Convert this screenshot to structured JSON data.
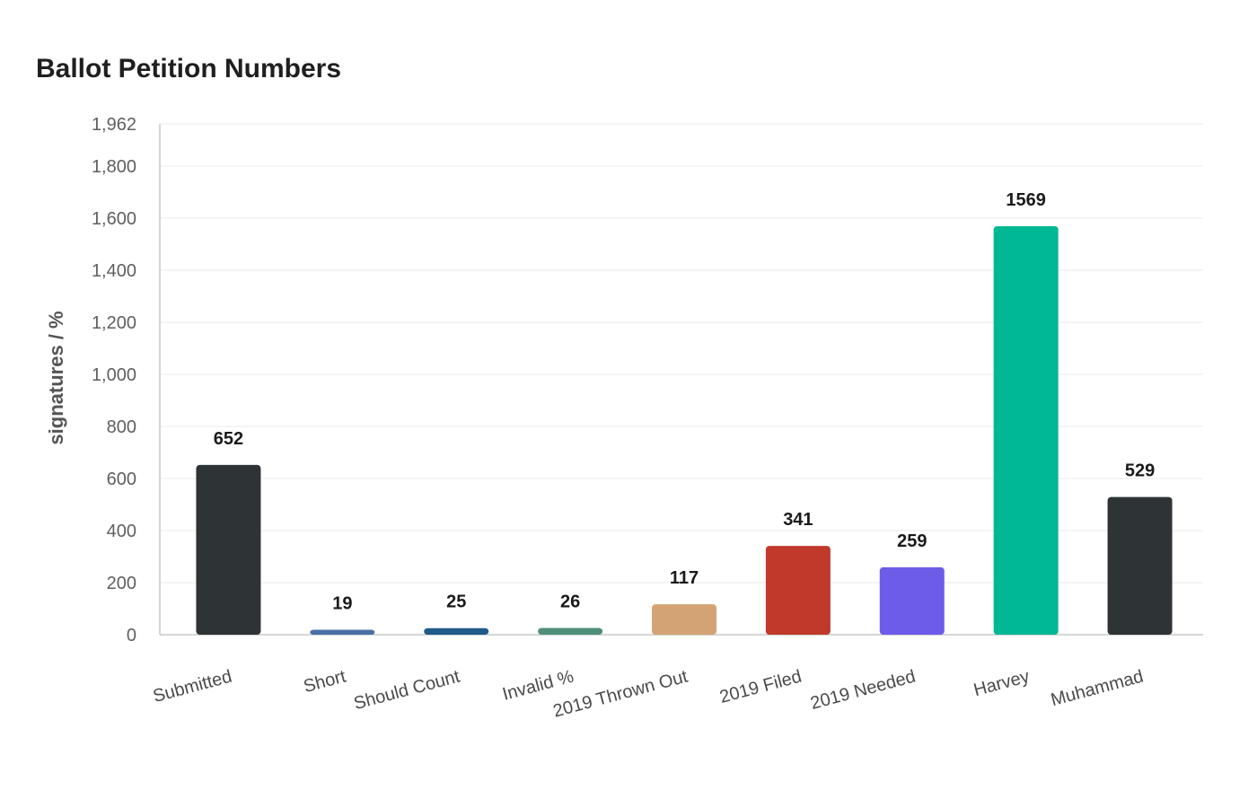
{
  "chart_data": {
    "type": "bar",
    "title": "Ballot Petition Numbers",
    "xlabel": "",
    "ylabel": "signatures / %",
    "ylim": [
      0,
      1962
    ],
    "yticks": [
      0,
      200,
      400,
      600,
      800,
      1000,
      1200,
      1400,
      1600,
      1800,
      1962
    ],
    "ytick_labels": [
      "0",
      "200",
      "400",
      "600",
      "800",
      "1,000",
      "1,200",
      "1,400",
      "1,600",
      "1,800",
      "1,962"
    ],
    "grid": true,
    "categories": [
      "Submitted",
      "Short",
      "Should Count",
      "Invalid %",
      "2019 Thrown Out",
      "2019 Filed",
      "2019 Needed",
      "Harvey",
      "Muhammad"
    ],
    "values": [
      652,
      19,
      25,
      26,
      117,
      341,
      259,
      1569,
      529
    ],
    "value_labels": [
      "652",
      "19",
      "25",
      "26",
      "117",
      "341",
      "259",
      "1569",
      "529"
    ],
    "colors": [
      "#2e3436",
      "#4a6fa5",
      "#1f5a8a",
      "#4f8f7a",
      "#d4a373",
      "#c0392b",
      "#6c5ce7",
      "#00b894",
      "#2e3436"
    ]
  }
}
